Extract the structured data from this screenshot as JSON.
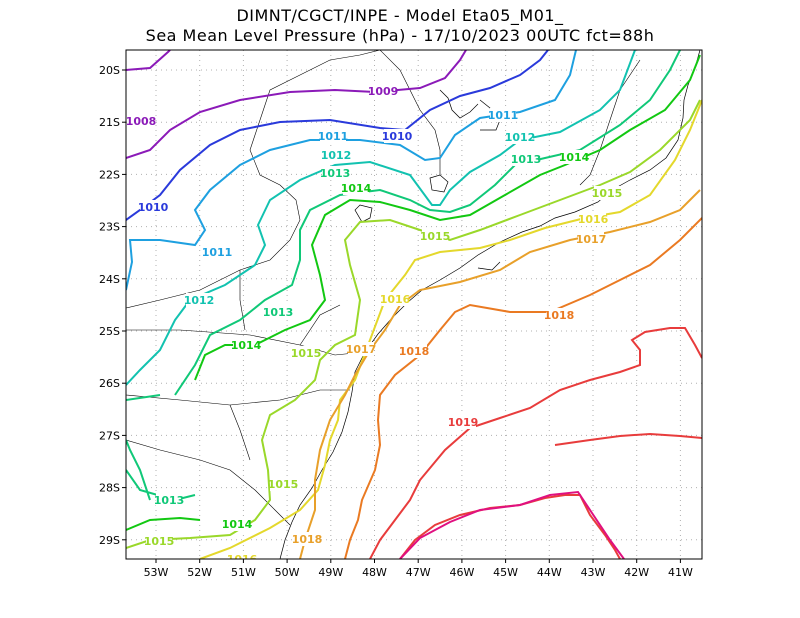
{
  "header": {
    "line1": "DIMNT/CGCT/INPE -  Model Eta05_M01_",
    "line2": "Sea Mean Level Pressure (hPa) - 17/10/2023 00UTC fct=88h"
  },
  "axes": {
    "lat_labels": [
      "20S",
      "21S",
      "22S",
      "23S",
      "24S",
      "25S",
      "26S",
      "27S",
      "28S",
      "29S"
    ],
    "lon_labels": [
      "53W",
      "52W",
      "51W",
      "50W",
      "49W",
      "48W",
      "47W",
      "46W",
      "45W",
      "44W",
      "43W",
      "42W",
      "41W"
    ]
  },
  "colors": {
    "1008": "#8b1ab8",
    "1009": "#8b1ab8",
    "1010": "#2a3adb",
    "1011": "#1ea0e0",
    "1012": "#12c2b0",
    "1013": "#10c878",
    "1014": "#12c812",
    "1015": "#9ad82a",
    "1016": "#e4d82c",
    "1017": "#e8a02a",
    "1018": "#ea7a22",
    "1019": "#e83c3c",
    "1020": "#e01080",
    "coast": "#000000",
    "grid": "#b0b0b0"
  },
  "contour_labels": [
    {
      "text": "1008",
      "level": "1008"
    },
    {
      "text": "1009",
      "level": "1009"
    },
    {
      "text": "1010",
      "level": "1010"
    },
    {
      "text": "1010",
      "level": "1010"
    },
    {
      "text": "1011",
      "level": "1011"
    },
    {
      "text": "1011",
      "level": "1011"
    },
    {
      "text": "1011",
      "level": "1011"
    },
    {
      "text": "1012",
      "level": "1012"
    },
    {
      "text": "1012",
      "level": "1012"
    },
    {
      "text": "1012",
      "level": "1012"
    },
    {
      "text": "1013",
      "level": "1013"
    },
    {
      "text": "1013",
      "level": "1013"
    },
    {
      "text": "1013",
      "level": "1013"
    },
    {
      "text": "1013",
      "level": "1013"
    },
    {
      "text": "1014",
      "level": "1014"
    },
    {
      "text": "1014",
      "level": "1014"
    },
    {
      "text": "1014",
      "level": "1014"
    },
    {
      "text": "1014",
      "level": "1014"
    },
    {
      "text": "1015",
      "level": "1015"
    },
    {
      "text": "1015",
      "level": "1015"
    },
    {
      "text": "1015",
      "level": "1015"
    },
    {
      "text": "1015",
      "level": "1015"
    },
    {
      "text": "1015",
      "level": "1015"
    },
    {
      "text": "1016",
      "level": "1016"
    },
    {
      "text": "1016",
      "level": "1016"
    },
    {
      "text": "1016",
      "level": "1016"
    },
    {
      "text": "1017",
      "level": "1017"
    },
    {
      "text": "1017",
      "level": "1017"
    },
    {
      "text": "1018",
      "level": "1018"
    },
    {
      "text": "1018",
      "level": "1018"
    },
    {
      "text": "1018",
      "level": "1018"
    },
    {
      "text": "1019",
      "level": "1019"
    }
  ]
}
